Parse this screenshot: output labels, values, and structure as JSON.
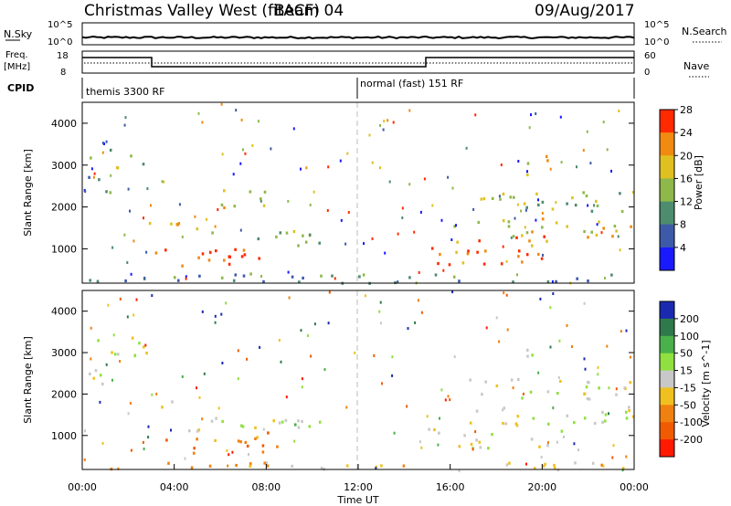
{
  "header": {
    "title": "Christmas Valley West (fitACF)",
    "beam": "Beam 04",
    "date": "09/Aug/2017"
  },
  "top_panels": {
    "nsky_label": "N.Sky",
    "nsky_ticks": [
      "10^5",
      "10^0"
    ],
    "nsearch_label": "N.Search",
    "nsearch_ticks": [
      "10^5",
      "10^0"
    ],
    "freq_label_1": "Freq.",
    "freq_label_2": "[MHz]",
    "freq_ticks": [
      "18",
      "8"
    ],
    "nave_label": "Nave",
    "nave_ticks": [
      "60",
      "0"
    ],
    "cpid_label": "CPID",
    "cpid_segments": [
      "themis 3300 RF",
      "normal (fast) 151 RF"
    ]
  },
  "chart_data": [
    {
      "type": "heatmap",
      "name": "power",
      "ylabel": "Slant Range [km]",
      "xlabel": "",
      "yticks": [
        "1000",
        "2000",
        "3000",
        "4000"
      ],
      "ylim": [
        180,
        4500
      ],
      "xlim": [
        0,
        24
      ],
      "colorbar_label": "Power [dB]",
      "colorbar_ticks": [
        "4",
        "8",
        "12",
        "16",
        "20",
        "24",
        "28"
      ],
      "colorbar_colors": [
        "#1a1aff",
        "#3d5aa8",
        "#4d8c6e",
        "#8fb84a",
        "#e0c020",
        "#f08a10",
        "#ff2a00"
      ],
      "regions": [
        {
          "t": [
            0.3,
            2.8
          ],
          "r": [
            2900,
            3400
          ],
          "level": 3
        },
        {
          "t": [
            0.1,
            1.2
          ],
          "r": [
            2200,
            2900
          ],
          "level": 2
        },
        {
          "t": [
            2.8,
            5.0
          ],
          "r": [
            1500,
            1850
          ],
          "level": 4
        },
        {
          "t": [
            4.5,
            11.0
          ],
          "r": [
            1100,
            1450
          ],
          "level": 3
        },
        {
          "t": [
            3.0,
            8.0
          ],
          "r": [
            600,
            1100
          ],
          "level": 6
        },
        {
          "t": [
            6.0,
            8.2
          ],
          "r": [
            2000,
            2600
          ],
          "level": 4
        },
        {
          "t": [
            15.0,
            20.5
          ],
          "r": [
            650,
            1350
          ],
          "level": 5
        },
        {
          "t": [
            16.0,
            24.0
          ],
          "r": [
            1300,
            1750
          ],
          "level": 4
        },
        {
          "t": [
            16.5,
            24.0
          ],
          "r": [
            1900,
            2400
          ],
          "level": 3
        },
        {
          "t": [
            19.3,
            20.3
          ],
          "r": [
            2800,
            3300
          ],
          "level": 4
        },
        {
          "t": [
            0.0,
            24.0
          ],
          "r": [
            200,
            450
          ],
          "level": 2
        }
      ]
    },
    {
      "type": "heatmap",
      "name": "velocity",
      "ylabel": "Slant Range [km]",
      "xlabel": "Time UT",
      "xticks": [
        "00:00",
        "04:00",
        "08:00",
        "12:00",
        "16:00",
        "20:00",
        "00:00"
      ],
      "yticks": [
        "1000",
        "2000",
        "3000",
        "4000"
      ],
      "ylim": [
        180,
        4500
      ],
      "xlim": [
        0,
        24
      ],
      "colorbar_label": "Velocity [m s^-1]",
      "colorbar_ticks": [
        "200",
        "100",
        "50",
        "15",
        "-15",
        "-50",
        "-100",
        "-200"
      ],
      "colorbar_colors": [
        "#1a2ab0",
        "#2e7a4c",
        "#4ab04a",
        "#90e040",
        "#c8c8c8",
        "#f0c020",
        "#f08010",
        "#f05a00",
        "#ff1a00"
      ],
      "regions": [
        {
          "t": [
            0.3,
            2.8
          ],
          "r": [
            2900,
            3400
          ],
          "level": 4
        },
        {
          "t": [
            0.1,
            1.2
          ],
          "r": [
            2200,
            2900
          ],
          "level": 4
        },
        {
          "t": [
            2.8,
            5.0
          ],
          "r": [
            1500,
            1850
          ],
          "level": 4
        },
        {
          "t": [
            4.5,
            11.0
          ],
          "r": [
            1100,
            1450
          ],
          "level": 4
        },
        {
          "t": [
            3.5,
            8.5
          ],
          "r": [
            600,
            1100
          ],
          "level": 6
        },
        {
          "t": [
            8.0,
            10.0
          ],
          "r": [
            1200,
            1400
          ],
          "level": 3
        },
        {
          "t": [
            15.0,
            21.0
          ],
          "r": [
            650,
            1350
          ],
          "level": 4
        },
        {
          "t": [
            16.0,
            24.0
          ],
          "r": [
            1300,
            1750
          ],
          "level": 4
        },
        {
          "t": [
            16.5,
            24.0
          ],
          "r": [
            1900,
            2400
          ],
          "level": 4
        },
        {
          "t": [
            19.3,
            20.3
          ],
          "r": [
            2800,
            3300
          ],
          "level": 4
        },
        {
          "t": [
            0.0,
            24.0
          ],
          "r": [
            200,
            400
          ],
          "level": 5
        }
      ]
    }
  ]
}
